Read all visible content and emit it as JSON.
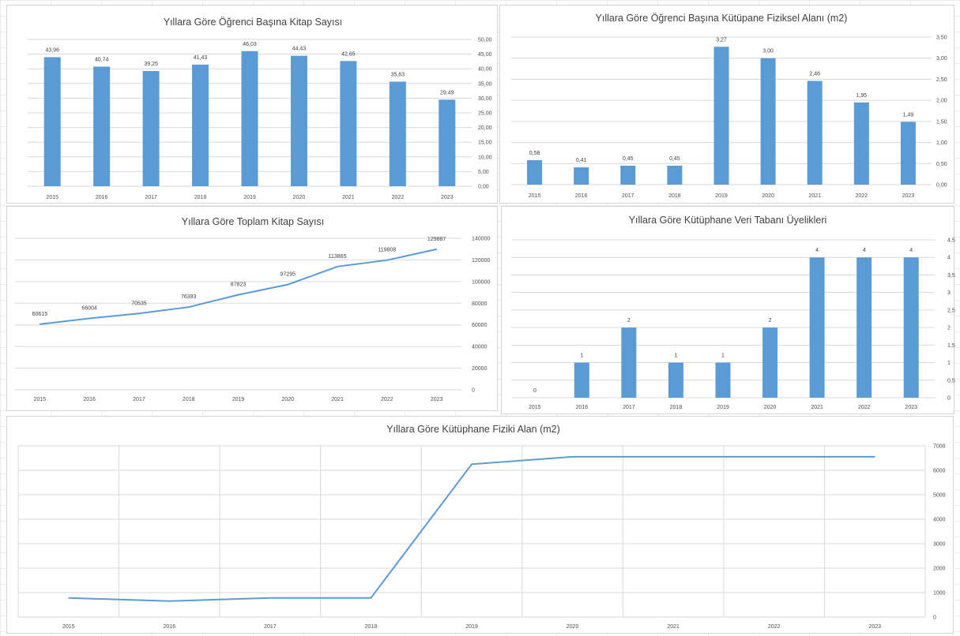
{
  "chart_data": [
    {
      "id": "c1",
      "type": "bar",
      "title": "Yıllara Göre Öğrenci Başına Kitap Sayısı",
      "categories": [
        "2015",
        "2016",
        "2017",
        "2018",
        "2019",
        "2020",
        "2021",
        "2022",
        "2023"
      ],
      "values": [
        43.96,
        40.74,
        39.25,
        41.43,
        46.03,
        44.43,
        42.65,
        35.63,
        29.49
      ],
      "value_labels": [
        "43,96",
        "40,74",
        "39,25",
        "41,43",
        "46,03",
        "44,43",
        "42,65",
        "35,63",
        "29,49"
      ],
      "ylim": [
        0,
        50
      ],
      "yticks": [
        "0,00",
        "5,00",
        "10,00",
        "15,00",
        "20,00",
        "25,00",
        "30,00",
        "35,00",
        "40,00",
        "45,00",
        "50,00"
      ],
      "y_axis_side": "right",
      "grid": true,
      "color": "#5b9bd5"
    },
    {
      "id": "c2",
      "type": "bar",
      "title": "Yıllara Göre Öğrenci Başına Kütüpane Fiziksel Alanı (m2)",
      "categories": [
        "2015",
        "2016",
        "2017",
        "2018",
        "2019",
        "2020",
        "2021",
        "2022",
        "2023"
      ],
      "values": [
        0.58,
        0.41,
        0.45,
        0.45,
        3.27,
        3.0,
        2.46,
        1.95,
        1.49
      ],
      "value_labels": [
        "0,58",
        "0,41",
        "0,45",
        "0,45",
        "3,27",
        "3,00",
        "2,46",
        "1,95",
        "1,49"
      ],
      "ylim": [
        0,
        3.5
      ],
      "yticks": [
        "0,00",
        "0,50",
        "1,00",
        "1,50",
        "2,00",
        "2,50",
        "3,00",
        "3,50"
      ],
      "y_axis_side": "right",
      "grid": true,
      "color": "#5b9bd5"
    },
    {
      "id": "c3",
      "type": "line",
      "title": "Yıllara Göre Toplam Kitap Sayısı",
      "categories": [
        "2015",
        "2016",
        "2017",
        "2018",
        "2019",
        "2020",
        "2021",
        "2022",
        "2023"
      ],
      "values": [
        60615,
        66004,
        70535,
        76393,
        87823,
        97295,
        113865,
        119808,
        129887
      ],
      "value_labels": [
        "60615",
        "66004",
        "70535",
        "76393",
        "87823",
        "97295",
        "113865",
        "119808",
        "129887"
      ],
      "ylim": [
        0,
        140000
      ],
      "yticks": [
        "0",
        "20000",
        "40000",
        "60000",
        "80000",
        "100000",
        "120000",
        "140000"
      ],
      "y_axis_side": "right",
      "grid": true,
      "color": "#5b9bd5"
    },
    {
      "id": "c4",
      "type": "bar",
      "title": "Yıllara Göre Kütüphane Veri Tabanı Üyelikleri",
      "categories": [
        "2015",
        "2016",
        "2017",
        "2018",
        "2019",
        "2020",
        "2021",
        "2022",
        "2023"
      ],
      "values": [
        0,
        1,
        2,
        1,
        1,
        2,
        4,
        4,
        4
      ],
      "value_labels": [
        "0",
        "1",
        "2",
        "1",
        "1",
        "2",
        "4",
        "4",
        "4"
      ],
      "ylim": [
        0,
        4.5
      ],
      "yticks": [
        "0",
        "0,5",
        "1",
        "1,5",
        "2",
        "2,5",
        "3",
        "3,5",
        "4",
        "4,5"
      ],
      "y_axis_side": "right",
      "grid": true,
      "color": "#5b9bd5"
    },
    {
      "id": "c5",
      "type": "line",
      "title": "Yıllara Göre Kütüphane Fiziki Alan (m2)",
      "categories": [
        "2015",
        "2016",
        "2017",
        "2018",
        "2019",
        "2020",
        "2021",
        "2022",
        "2023"
      ],
      "values": [
        780,
        650,
        780,
        780,
        6250,
        6550,
        6550,
        6550,
        6550
      ],
      "value_labels": [],
      "ylim": [
        0,
        7000
      ],
      "yticks": [
        "0",
        "1000",
        "2000",
        "3000",
        "4000",
        "5000",
        "6000",
        "7000"
      ],
      "y_axis_side": "right",
      "grid": true,
      "vertical_grid": true,
      "color": "#5b9bd5"
    }
  ]
}
